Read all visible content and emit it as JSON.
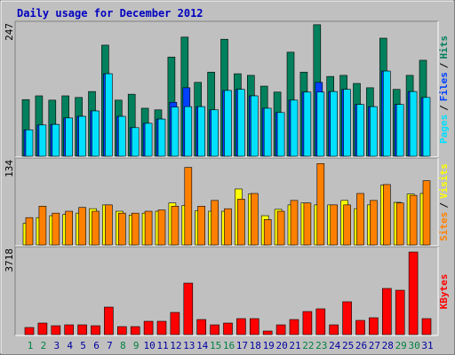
{
  "chart_data": [
    {
      "type": "bar",
      "title": "Daily usage for December 2012",
      "ylim": [
        0,
        247
      ],
      "yticks": [
        247
      ],
      "legend_separator": "/",
      "series": [
        {
          "name": "Hits",
          "color": "#00805c",
          "values": [
            105,
            112,
            104,
            112,
            109,
            120,
            206,
            104,
            115,
            89,
            86,
            184,
            221,
            137,
            156,
            217,
            153,
            150,
            130,
            119,
            193,
            156,
            244,
            148,
            150,
            135,
            127,
            219,
            124,
            150,
            178
          ]
        },
        {
          "name": "Files",
          "color": "#0040ff",
          "values": [
            49,
            58,
            59,
            71,
            74,
            84,
            153,
            74,
            53,
            61,
            69,
            100,
            127,
            92,
            86,
            122,
            124,
            112,
            89,
            81,
            104,
            119,
            137,
            120,
            124,
            96,
            92,
            158,
            96,
            120,
            109
          ]
        },
        {
          "name": "Pages",
          "color": "#00e0ff",
          "values": [
            49,
            58,
            59,
            71,
            74,
            84,
            153,
            74,
            53,
            61,
            69,
            91,
            92,
            92,
            86,
            122,
            124,
            112,
            89,
            81,
            104,
            119,
            119,
            120,
            124,
            96,
            92,
            158,
            96,
            120,
            109
          ]
        }
      ]
    },
    {
      "type": "bar",
      "ylim": [
        0,
        134
      ],
      "yticks": [
        134
      ],
      "legend_separator": "/",
      "series": [
        {
          "name": "Visits",
          "color": "#ffff00",
          "values": [
            34,
            43,
            46,
            48,
            50,
            57,
            63,
            53,
            47,
            50,
            53,
            66,
            62,
            54,
            53,
            53,
            88,
            80,
            46,
            56,
            63,
            66,
            63,
            63,
            70,
            57,
            63,
            94,
            67,
            80,
            81
          ]
        },
        {
          "name": "Sites",
          "color": "#ff8000",
          "values": [
            43,
            61,
            50,
            53,
            59,
            53,
            63,
            50,
            50,
            53,
            55,
            61,
            122,
            61,
            70,
            57,
            72,
            81,
            40,
            53,
            70,
            66,
            128,
            63,
            63,
            81,
            70,
            95,
            66,
            78,
            101
          ]
        }
      ]
    },
    {
      "type": "bar",
      "ylim": [
        0,
        3718
      ],
      "yticks": [
        3718
      ],
      "categories": [
        "1",
        "2",
        "3",
        "4",
        "5",
        "6",
        "7",
        "8",
        "9",
        "10",
        "11",
        "12",
        "13",
        "14",
        "15",
        "16",
        "17",
        "18",
        "19",
        "20",
        "21",
        "22",
        "23",
        "24",
        "25",
        "26",
        "27",
        "28",
        "29",
        "30",
        "31"
      ],
      "category_colors": [
        "#008040",
        "#008040",
        "#0000a0",
        "#0000a0",
        "#0000a0",
        "#0000a0",
        "#0000a0",
        "#008040",
        "#008040",
        "#0000a0",
        "#0000a0",
        "#0000a0",
        "#0000a0",
        "#0000a0",
        "#008040",
        "#008040",
        "#0000a0",
        "#0000a0",
        "#0000a0",
        "#0000a0",
        "#0000a0",
        "#008040",
        "#008040",
        "#0000a0",
        "#0000a0",
        "#0000a0",
        "#0000a0",
        "#0000a0",
        "#008040",
        "#008040",
        "#0000a0"
      ],
      "series": [
        {
          "name": "KBytes",
          "color": "#ff0000",
          "values": [
            307,
            498,
            383,
            421,
            421,
            383,
            1188,
            345,
            345,
            575,
            575,
            958,
            2223,
            651,
            421,
            498,
            690,
            690,
            153,
            421,
            651,
            996,
            1112,
            421,
            1418,
            613,
            728,
            1993,
            1916,
            3565,
            690
          ]
        }
      ]
    }
  ]
}
